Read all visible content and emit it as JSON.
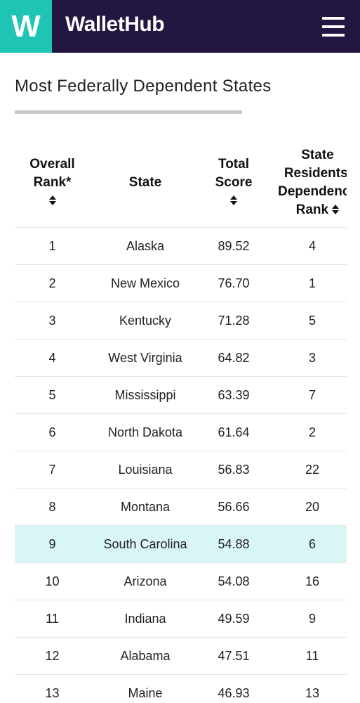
{
  "header": {
    "logo_letter": "W",
    "brand": "WalletHub",
    "colors": {
      "bar": "#231641",
      "logo": "#1fc4b5"
    },
    "menu_icon": "hamburger-menu-icon"
  },
  "page": {
    "title": "Most Federally Dependent States"
  },
  "table": {
    "headers": {
      "rank_line1": "Overall",
      "rank_line2": "Rank*",
      "state": "State",
      "score_line1": "Total",
      "score_line2": "Score",
      "dep_line1": "State",
      "dep_line2": "Residents'",
      "dep_line3": "Dependency",
      "dep_line4": "Rank"
    },
    "sort_icon": "sort-up-down-icon",
    "highlight_color": "#d9f6f6",
    "rows": [
      {
        "rank": "1",
        "state": "Alaska",
        "score": "89.52",
        "dep": "4"
      },
      {
        "rank": "2",
        "state": "New Mexico",
        "score": "76.70",
        "dep": "1"
      },
      {
        "rank": "3",
        "state": "Kentucky",
        "score": "71.28",
        "dep": "5"
      },
      {
        "rank": "4",
        "state": "West Virginia",
        "score": "64.82",
        "dep": "3"
      },
      {
        "rank": "5",
        "state": "Mississippi",
        "score": "63.39",
        "dep": "7"
      },
      {
        "rank": "6",
        "state": "North Dakota",
        "score": "61.64",
        "dep": "2"
      },
      {
        "rank": "7",
        "state": "Louisiana",
        "score": "56.83",
        "dep": "22"
      },
      {
        "rank": "8",
        "state": "Montana",
        "score": "56.66",
        "dep": "20"
      },
      {
        "rank": "9",
        "state": "South Carolina",
        "score": "54.88",
        "dep": "6",
        "highlighted": true
      },
      {
        "rank": "10",
        "state": "Arizona",
        "score": "54.08",
        "dep": "16"
      },
      {
        "rank": "11",
        "state": "Indiana",
        "score": "49.59",
        "dep": "9"
      },
      {
        "rank": "12",
        "state": "Alabama",
        "score": "47.51",
        "dep": "11"
      },
      {
        "rank": "13",
        "state": "Maine",
        "score": "46.93",
        "dep": "13"
      }
    ]
  }
}
